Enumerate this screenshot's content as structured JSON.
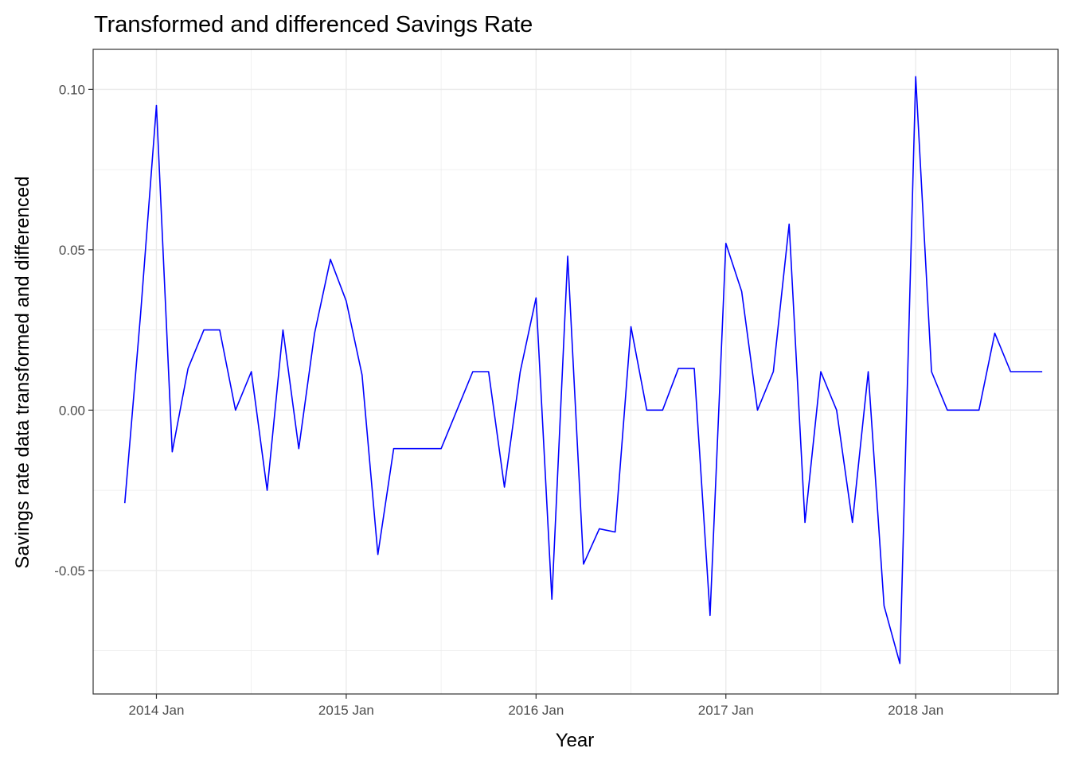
{
  "chart_data": {
    "type": "line",
    "title": "Transformed and differenced Savings Rate",
    "xlabel": "Year",
    "ylabel": "Savings rate data transformed and differenced",
    "x_ticks": [
      {
        "label": "2014 Jan",
        "year": 2014,
        "month": 1
      },
      {
        "label": "2015 Jan",
        "year": 2015,
        "month": 1
      },
      {
        "label": "2016 Jan",
        "year": 2016,
        "month": 1
      },
      {
        "label": "2017 Jan",
        "year": 2017,
        "month": 1
      },
      {
        "label": "2018 Jan",
        "year": 2018,
        "month": 1
      }
    ],
    "y_ticks": [
      {
        "label": "0.10",
        "value": 0.1
      },
      {
        "label": "0.05",
        "value": 0.05
      },
      {
        "label": "0.00",
        "value": 0.0
      },
      {
        "label": "-0.05",
        "value": -0.05
      }
    ],
    "ylim": [
      -0.0885,
      0.1125
    ],
    "xlim": [
      "2013-09",
      "2018-10"
    ],
    "grid": true,
    "legend": "none",
    "line_color": "#0000FF",
    "series": [
      {
        "x": [
          "2013-11",
          "2013-12",
          "2014-01",
          "2014-02",
          "2014-03",
          "2014-04",
          "2014-05",
          "2014-06",
          "2014-07",
          "2014-08",
          "2014-09",
          "2014-10",
          "2014-11",
          "2014-12",
          "2015-01",
          "2015-02",
          "2015-03",
          "2015-04",
          "2015-05",
          "2015-06",
          "2015-07",
          "2015-08",
          "2015-09",
          "2015-10",
          "2015-11",
          "2015-12",
          "2016-01",
          "2016-02",
          "2016-03",
          "2016-04",
          "2016-05",
          "2016-06",
          "2016-07",
          "2016-08",
          "2016-09",
          "2016-10",
          "2016-11",
          "2016-12",
          "2017-01",
          "2017-02",
          "2017-03",
          "2017-04",
          "2017-05",
          "2017-06",
          "2017-07",
          "2017-08",
          "2017-09",
          "2017-10",
          "2017-11",
          "2017-12",
          "2018-01",
          "2018-02",
          "2018-03",
          "2018-04",
          "2018-05",
          "2018-06",
          "2018-07",
          "2018-08",
          "2018-09"
        ],
        "values": [
          -0.029,
          0.03,
          0.095,
          -0.013,
          0.013,
          0.025,
          0.025,
          0.0,
          0.012,
          -0.025,
          0.025,
          -0.012,
          0.024,
          0.047,
          0.034,
          0.011,
          -0.045,
          -0.012,
          -0.012,
          -0.012,
          -0.012,
          0.0,
          0.012,
          0.012,
          -0.024,
          0.012,
          0.035,
          -0.059,
          0.048,
          -0.048,
          -0.037,
          -0.038,
          0.026,
          0.0,
          0.0,
          0.013,
          0.013,
          -0.064,
          0.052,
          0.037,
          0.0,
          0.012,
          0.058,
          -0.035,
          0.012,
          0.0,
          -0.035,
          0.012,
          -0.061,
          -0.079,
          0.104,
          0.012,
          0.0,
          0.0,
          0.0,
          0.024,
          0.012,
          0.012,
          0.012
        ]
      }
    ]
  }
}
